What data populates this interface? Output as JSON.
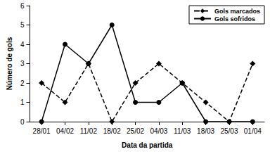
{
  "chart_data": {
    "type": "line",
    "x_label": "Data da partida",
    "y_label": "Número de gols",
    "categories": [
      "28/01",
      "04/02",
      "11/02",
      "18/02",
      "25/02",
      "04/03",
      "11/03",
      "18/03",
      "25/03",
      "01/04"
    ],
    "series": [
      {
        "name": "Gols marcados",
        "color": "#000000",
        "line_style": "dashed",
        "marker": "diamond",
        "values": [
          2,
          1,
          3,
          0,
          2,
          3,
          2,
          1,
          0,
          3
        ]
      },
      {
        "name": "Gols sofridos",
        "color": "#000000",
        "line_style": "solid",
        "marker": "circle",
        "values": [
          0,
          4,
          3,
          5,
          1,
          1,
          2,
          0,
          0,
          0
        ]
      }
    ],
    "ylim": [
      0,
      6
    ],
    "yticks": [
      0,
      1,
      2,
      3,
      4,
      5,
      6
    ],
    "grid": false,
    "legend": "upper right"
  }
}
